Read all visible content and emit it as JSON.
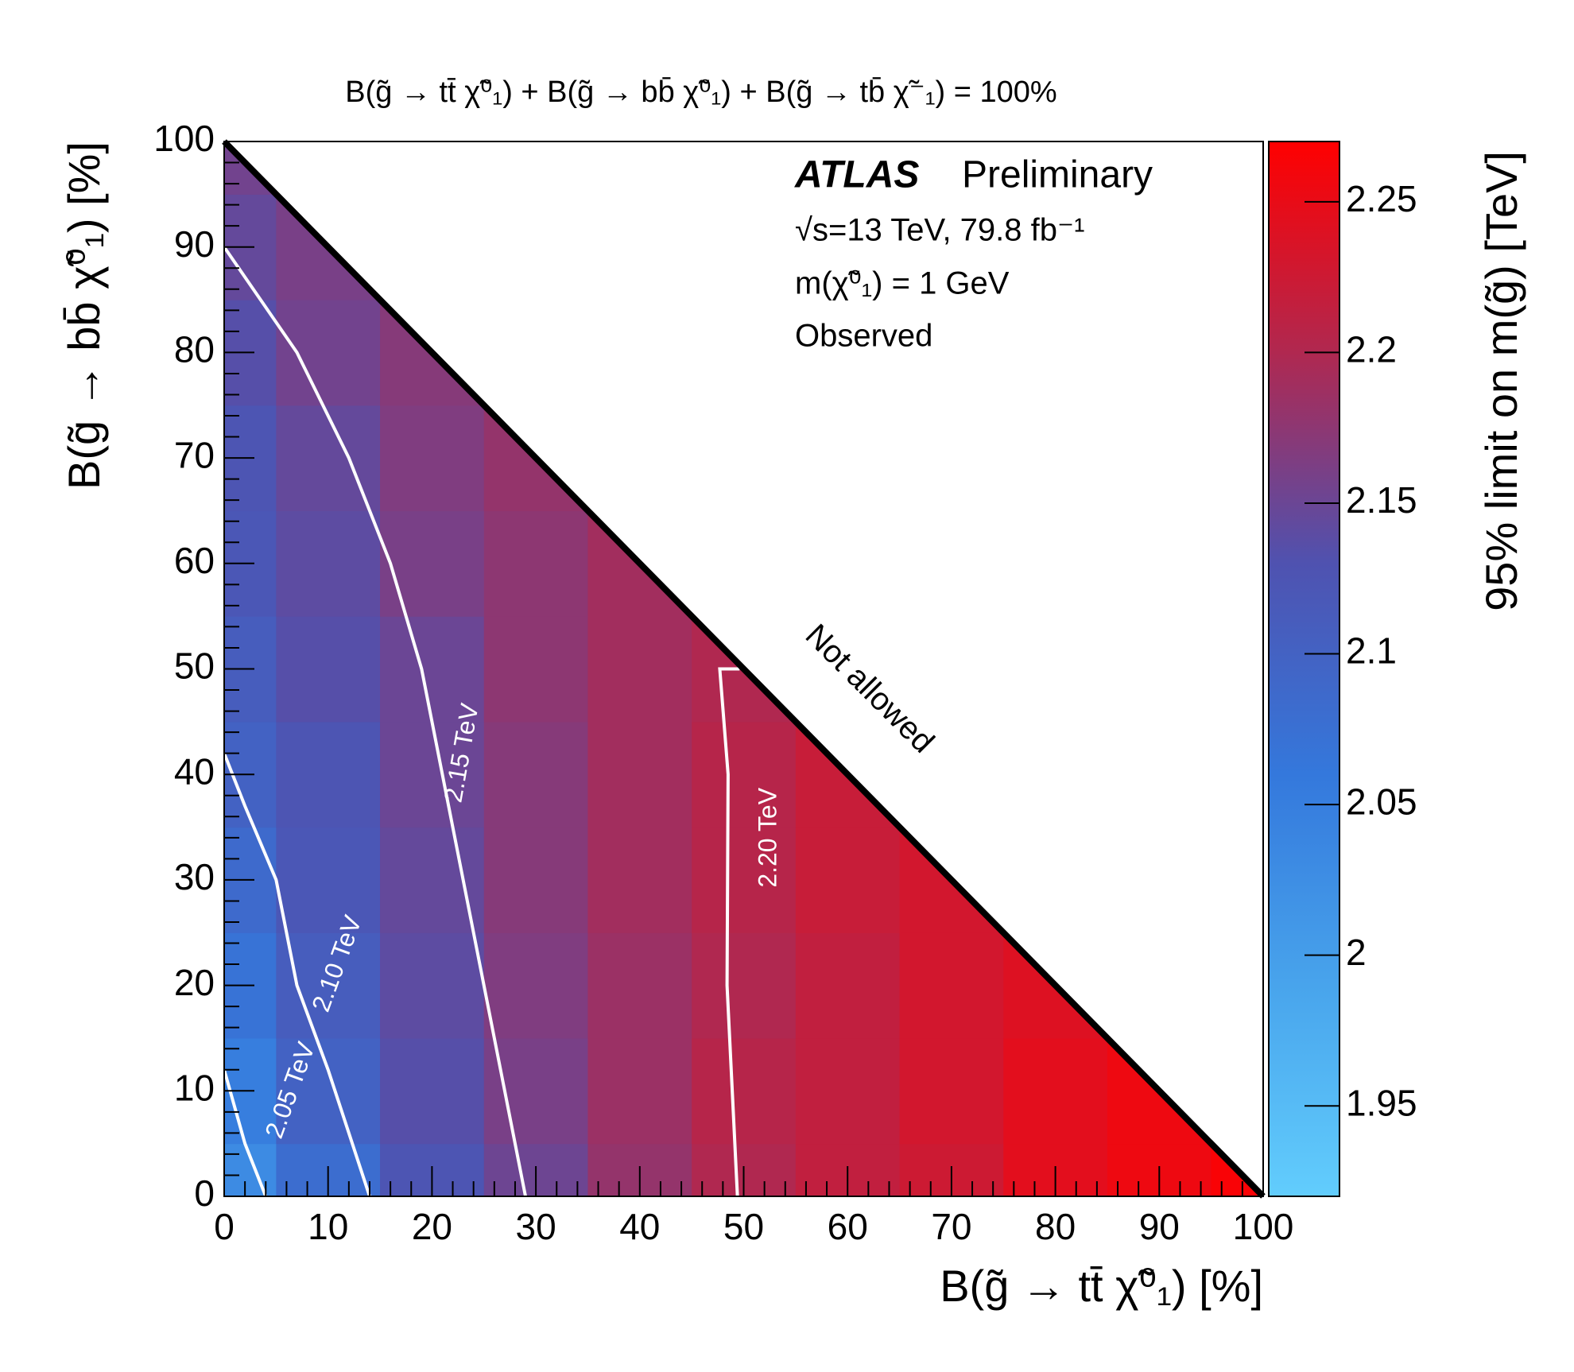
{
  "chart_data": {
    "type": "heatmap",
    "title": "B(g̃ → tt̄ χ̃⁰₁) + B(g̃ → bb̄ χ̃⁰₁) + B(g̃ → tb̄ χ̃⁻₁) = 100%",
    "xlabel": "B(g̃ → tt̄ χ̃⁰₁)   [%]",
    "ylabel": "B(g̃ → bb̄ χ̃⁰₁)   [%]",
    "zlabel": "95% limit on m(g̃) [TeV]",
    "experiment": "ATLAS",
    "status": "Preliminary",
    "annotations": [
      "√s=13 TeV, 79.8 fb⁻¹",
      "m(χ̃⁰₁) = 1 GeV",
      "Observed"
    ],
    "region_label": "Not allowed",
    "x": [
      0,
      10,
      20,
      30,
      40,
      50,
      60,
      70,
      80,
      90,
      100
    ],
    "y": [
      0,
      10,
      20,
      30,
      40,
      50,
      60,
      70,
      80,
      90,
      100
    ],
    "z": [
      [
        2.03,
        2.08,
        2.125,
        2.152,
        2.18,
        2.2,
        2.215,
        2.225,
        2.245,
        2.255,
        2.265
      ],
      [
        2.05,
        2.1,
        2.135,
        2.16,
        2.185,
        2.205,
        2.215,
        2.23,
        2.245,
        2.255,
        null
      ],
      [
        2.07,
        2.11,
        2.14,
        2.165,
        2.185,
        2.2,
        2.215,
        2.23,
        2.24,
        null,
        null
      ],
      [
        2.085,
        2.12,
        2.145,
        2.17,
        2.19,
        2.205,
        2.22,
        2.23,
        null,
        null,
        null
      ],
      [
        2.1,
        2.125,
        2.15,
        2.17,
        2.19,
        2.205,
        2.22,
        null,
        null,
        null,
        null
      ],
      [
        2.11,
        2.135,
        2.15,
        2.175,
        2.19,
        2.2,
        null,
        null,
        null,
        null,
        null
      ],
      [
        2.12,
        2.14,
        2.16,
        2.175,
        2.19,
        null,
        null,
        null,
        null,
        null,
        null
      ],
      [
        2.125,
        2.145,
        2.165,
        2.18,
        null,
        null,
        null,
        null,
        null,
        null,
        null
      ],
      [
        2.135,
        2.155,
        2.17,
        null,
        null,
        null,
        null,
        null,
        null,
        null,
        null
      ],
      [
        2.145,
        2.16,
        null,
        null,
        null,
        null,
        null,
        null,
        null,
        null,
        null
      ],
      [
        2.155,
        null,
        null,
        null,
        null,
        null,
        null,
        null,
        null,
        null,
        null
      ]
    ],
    "colorscale": [
      "#62cdfd",
      "#48a4ec",
      "#3478dc",
      "#4f52b0",
      "#b02850",
      "#ff0000"
    ],
    "contours": [
      {
        "label": "2.05 TeV",
        "x": [
          0,
          2,
          4
        ],
        "y": [
          12,
          5,
          0
        ]
      },
      {
        "label": "2.10 TeV",
        "x": [
          0,
          2,
          5,
          7,
          10,
          12,
          14
        ],
        "y": [
          42,
          37,
          30,
          20,
          12,
          6,
          0
        ]
      },
      {
        "label": "2.15 TeV",
        "x": [
          0,
          7,
          12,
          16,
          19,
          21,
          23,
          25,
          27,
          29
        ],
        "y": [
          90,
          80,
          70,
          60,
          50,
          40,
          30,
          20,
          10,
          0
        ]
      },
      {
        "label": "2.20 TeV",
        "x": [
          49.6,
          47.7,
          48.5,
          48.4,
          49.4
        ],
        "y": [
          50,
          50,
          40,
          20,
          0
        ]
      }
    ],
    "contour_color": "#ffffff",
    "xlim": [
      0,
      100
    ],
    "ylim": [
      0,
      100
    ],
    "xticks": [
      0,
      10,
      20,
      30,
      40,
      50,
      60,
      70,
      80,
      90,
      100
    ],
    "yticks": [
      0,
      10,
      20,
      30,
      40,
      50,
      60,
      70,
      80,
      90,
      100
    ],
    "zlim": [
      1.92,
      2.27
    ],
    "zticks": [
      1.95,
      2,
      2.05,
      2.1,
      2.15,
      2.2,
      2.25
    ]
  }
}
